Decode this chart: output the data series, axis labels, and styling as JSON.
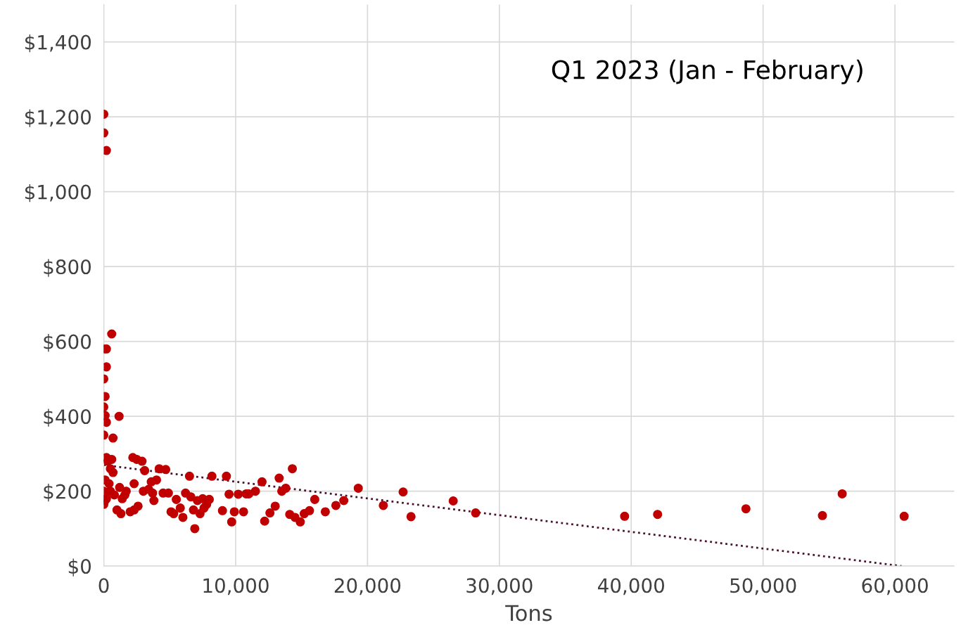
{
  "chart_data": {
    "type": "scatter",
    "title": "Q1 2023 (Jan - February)",
    "xlabel": "Tons",
    "xlim": [
      0,
      64500
    ],
    "ylim": [
      0,
      1500
    ],
    "xticks": [
      0,
      {
        "value": 10000,
        "label": "10,000"
      },
      {
        "value": 20000,
        "label": "20,000"
      },
      {
        "value": 30000,
        "label": "30,000"
      },
      {
        "value": 40000,
        "label": "40,000"
      },
      {
        "value": 50000,
        "label": "50,000"
      },
      {
        "value": 60000,
        "label": "60,000"
      }
    ],
    "yticks": [
      {
        "value": 0,
        "label": "$0"
      },
      {
        "value": 200,
        "label": "$200"
      },
      {
        "value": 400,
        "label": "$400"
      },
      {
        "value": 600,
        "label": "$600"
      },
      {
        "value": 800,
        "label": "$800"
      },
      {
        "value": 1000,
        "label": "$1,000"
      },
      {
        "value": 1200,
        "label": "$1,200"
      },
      {
        "value": 1400,
        "label": "$1,400"
      }
    ],
    "grid": true,
    "marker": "circle",
    "series": [
      {
        "color": "#c00000",
        "x": [
          0,
          0,
          200,
          600,
          0,
          200,
          200,
          0,
          100,
          0,
          100,
          200,
          1160,
          700,
          0,
          0,
          100,
          200,
          300,
          500,
          600,
          700,
          400,
          200,
          0,
          100,
          500,
          800,
          1000,
          1300,
          1200,
          1400,
          1600,
          1700,
          2200,
          2300,
          2500,
          2600,
          2300,
          2000,
          2900,
          3100,
          3000,
          3400,
          3700,
          3800,
          3600,
          4000,
          4200,
          4500,
          4700,
          4900,
          5100,
          5300,
          5500,
          5800,
          6000,
          6200,
          6500,
          6600,
          6800,
          6900,
          7100,
          7300,
          7500,
          7600,
          7800,
          8000,
          8200,
          9000,
          9300,
          9500,
          9700,
          9900,
          10200,
          10600,
          10800,
          11000,
          11500,
          12000,
          12200,
          12600,
          13000,
          13300,
          13500,
          13800,
          14100,
          14300,
          14500,
          14900,
          15200,
          15600,
          16000,
          16800,
          17600,
          18200,
          19300,
          21200,
          22700,
          23300,
          26500,
          28200,
          39500,
          42000,
          48700,
          54500,
          56000,
          60700
        ],
        "values": [
          1207,
          1157,
          1110,
          620,
          580,
          580,
          532,
          500,
          453,
          425,
          402,
          384,
          400,
          342,
          350,
          200,
          230,
          290,
          280,
          260,
          285,
          250,
          220,
          180,
          165,
          175,
          200,
          190,
          150,
          140,
          210,
          180,
          190,
          200,
          290,
          220,
          285,
          160,
          150,
          145,
          280,
          255,
          200,
          205,
          195,
          175,
          225,
          230,
          260,
          195,
          258,
          195,
          145,
          140,
          178,
          155,
          130,
          195,
          240,
          185,
          150,
          100,
          175,
          140,
          180,
          155,
          165,
          178,
          240,
          148,
          240,
          192,
          118,
          145,
          192,
          145,
          193,
          193,
          200,
          225,
          120,
          142,
          160,
          235,
          200,
          208,
          138,
          260,
          130,
          118,
          140,
          148,
          178,
          145,
          162,
          175,
          208,
          162,
          198,
          132,
          174,
          142,
          133,
          138,
          153,
          135,
          193,
          133
        ]
      },
      {
        "type": "line",
        "color": "#4b1030",
        "line_style": "dotted",
        "marker": "none",
        "x": [
          0,
          60500
        ],
        "values": [
          270,
          0
        ]
      }
    ]
  }
}
